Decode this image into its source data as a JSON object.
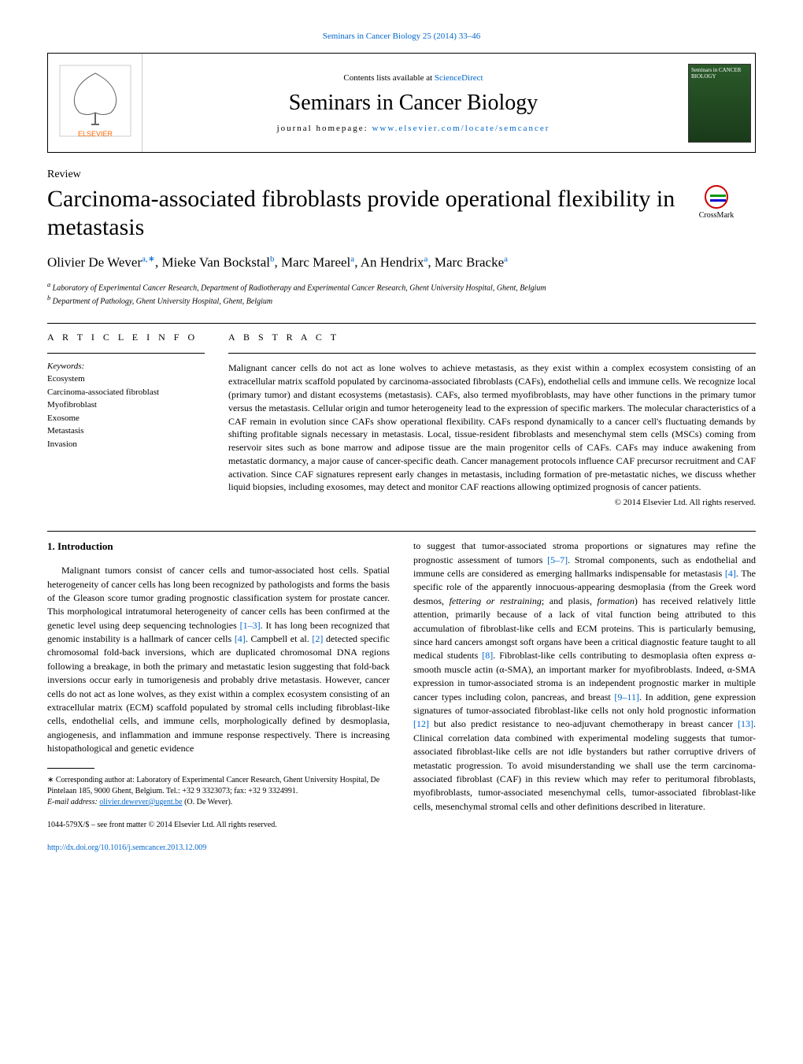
{
  "top_link": "Seminars in Cancer Biology 25 (2014) 33–46",
  "header": {
    "contents_prefix": "Contents lists available at ",
    "contents_link": "ScienceDirect",
    "journal_name": "Seminars in Cancer Biology",
    "homepage_prefix": "journal homepage: ",
    "homepage_link": "www.elsevier.com/locate/semcancer",
    "cover_text": "Seminars in CANCER BIOLOGY"
  },
  "crossmark_label": "CrossMark",
  "review_label": "Review",
  "title": "Carcinoma-associated fibroblasts provide operational flexibility in metastasis",
  "authors_html": "Olivier De Wever",
  "author_list": [
    {
      "name": "Olivier De Wever",
      "sup": "a,∗"
    },
    {
      "name": "Mieke Van Bockstal",
      "sup": "b"
    },
    {
      "name": "Marc Mareel",
      "sup": "a"
    },
    {
      "name": "An Hendrix",
      "sup": "a"
    },
    {
      "name": "Marc Bracke",
      "sup": "a"
    }
  ],
  "affiliations": [
    {
      "sup": "a",
      "text": "Laboratory of Experimental Cancer Research, Department of Radiotherapy and Experimental Cancer Research, Ghent University Hospital, Ghent, Belgium"
    },
    {
      "sup": "b",
      "text": "Department of Pathology, Ghent University Hospital, Ghent, Belgium"
    }
  ],
  "article_info": {
    "heading": "A R T I C L E   I N F O",
    "keywords_label": "Keywords:",
    "keywords": [
      "Ecosystem",
      "Carcinoma-associated fibroblast",
      "Myofibroblast",
      "Exosome",
      "Metastasis",
      "Invasion"
    ]
  },
  "abstract": {
    "heading": "A B S T R A C T",
    "text": "Malignant cancer cells do not act as lone wolves to achieve metastasis, as they exist within a complex ecosystem consisting of an extracellular matrix scaffold populated by carcinoma-associated fibroblasts (CAFs), endothelial cells and immune cells. We recognize local (primary tumor) and distant ecosystems (metastasis). CAFs, also termed myofibroblasts, may have other functions in the primary tumor versus the metastasis. Cellular origin and tumor heterogeneity lead to the expression of specific markers. The molecular characteristics of a CAF remain in evolution since CAFs show operational flexibility. CAFs respond dynamically to a cancer cell's fluctuating demands by shifting profitable signals necessary in metastasis. Local, tissue-resident fibroblasts and mesenchymal stem cells (MSCs) coming from reservoir sites such as bone marrow and adipose tissue are the main progenitor cells of CAFs. CAFs may induce awakening from metastatic dormancy, a major cause of cancer-specific death. Cancer management protocols influence CAF precursor recruitment and CAF activation. Since CAF signatures represent early changes in metastasis, including formation of pre-metastatic niches, we discuss whether liquid biopsies, including exosomes, may detect and monitor CAF reactions allowing optimized prognosis of cancer patients.",
    "copyright": "© 2014 Elsevier Ltd. All rights reserved."
  },
  "body": {
    "section_heading": "1. Introduction",
    "col1_para": "Malignant tumors consist of cancer cells and tumor-associated host cells. Spatial heterogeneity of cancer cells has long been recognized by pathologists and forms the basis of the Gleason score tumor grading prognostic classification system for prostate cancer. This morphological intratumoral heterogeneity of cancer cells has been confirmed at the genetic level using deep sequencing technologies ",
    "col1_ref1": "[1–3]",
    "col1_para2": ". It has long been recognized that genomic instability is a hallmark of cancer cells ",
    "col1_ref2": "[4]",
    "col1_para3": ". Campbell et al. ",
    "col1_ref3": "[2]",
    "col1_para4": " detected specific chromosomal fold-back inversions, which are duplicated chromosomal DNA regions following a breakage, in both the primary and metastatic lesion suggesting that fold-back inversions occur early in tumorigenesis and probably drive metastasis. However, cancer cells do not act as lone wolves, as they exist within a complex ecosystem consisting of an extracellular matrix (ECM) scaffold populated by stromal cells including fibroblast-like cells, endothelial cells, and immune cells, morphologically defined by desmoplasia, angiogenesis, and inflammation and immune response respectively. There is increasing histopathological and genetic evidence",
    "col2_para1": "to suggest that tumor-associated stroma proportions or signatures may refine the prognostic assessment of tumors ",
    "col2_ref1": "[5–7]",
    "col2_para2": ". Stromal components, such as endothelial and immune cells are considered as emerging hallmarks indispensable for metastasis ",
    "col2_ref2": "[4]",
    "col2_para3": ". The specific role of the apparently innocuous-appearing desmoplasia (from the Greek word desmos, ",
    "col2_italic1": "fettering or restraining",
    "col2_para4": "; and plasis, ",
    "col2_italic2": "formation",
    "col2_para5": ") has received relatively little attention, primarily because of a lack of vital function being attributed to this accumulation of fibroblast-like cells and ECM proteins. This is particularly bemusing, since hard cancers amongst soft organs have been a critical diagnostic feature taught to all medical students ",
    "col2_ref3": "[8]",
    "col2_para6": ". Fibroblast-like cells contributing to desmoplasia often express α-smooth muscle actin (α-SMA), an important marker for myofibroblasts. Indeed, α-SMA expression in tumor-associated stroma is an independent prognostic marker in multiple cancer types including colon, pancreas, and breast ",
    "col2_ref4": "[9–11]",
    "col2_para7": ". In addition, gene expression signatures of tumor-associated fibroblast-like cells not only hold prognostic information ",
    "col2_ref5": "[12]",
    "col2_para8": " but also predict resistance to neo-adjuvant chemotherapy in breast cancer ",
    "col2_ref6": "[13]",
    "col2_para9": ". Clinical correlation data combined with experimental modeling suggests that tumor-associated fibroblast-like cells are not idle bystanders but rather corruptive drivers of metastatic progression. To avoid misunderstanding we shall use the term carcinoma-associated fibroblast (CAF) in this review which may refer to peritumoral fibroblasts, myofibroblasts, tumor-associated mesenchymal cells, tumor-associated fibroblast-like cells, mesenchymal stromal cells and other definitions described in literature."
  },
  "footnote": {
    "corresponding": "∗ Corresponding author at: Laboratory of Experimental Cancer Research, Ghent University Hospital, De Pintelaan 185, 9000 Ghent, Belgium. Tel.: +32 9 3323073; fax: +32 9 3324991.",
    "email_label": "E-mail address: ",
    "email": "olivier.dewever@ugent.be",
    "email_suffix": " (O. De Wever)."
  },
  "bottom": {
    "issn": "1044-579X/$ – see front matter © 2014 Elsevier Ltd. All rights reserved.",
    "doi": "http://dx.doi.org/10.1016/j.semcancer.2013.12.009"
  }
}
